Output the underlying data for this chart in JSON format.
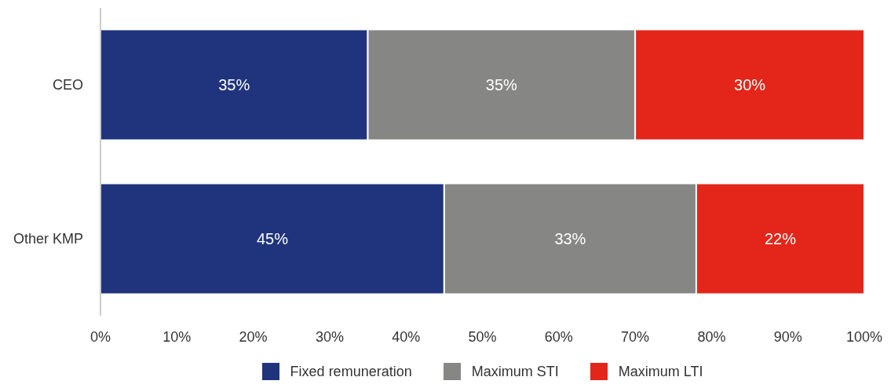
{
  "chart_data": {
    "type": "bar",
    "orientation": "horizontal",
    "stacked": true,
    "categories": [
      "CEO",
      "Other KMP"
    ],
    "series": [
      {
        "name": "Fixed remuneration",
        "color": "#1f347c",
        "values": [
          35,
          45
        ],
        "value_labels": [
          "35%",
          "45%"
        ]
      },
      {
        "name": "Maximum STI",
        "color": "#868685",
        "values": [
          35,
          33
        ],
        "value_labels": [
          "35%",
          "33%"
        ]
      },
      {
        "name": "Maximum LTI",
        "color": "#e32619",
        "values": [
          30,
          22
        ],
        "value_labels": [
          "30%",
          "22%"
        ]
      }
    ],
    "xlim": [
      0,
      100
    ],
    "xticks": [
      {
        "value": 0,
        "label": "0%"
      },
      {
        "value": 10,
        "label": "10%"
      },
      {
        "value": 20,
        "label": "20%"
      },
      {
        "value": 30,
        "label": "30%"
      },
      {
        "value": 40,
        "label": "40%"
      },
      {
        "value": 50,
        "label": "50%"
      },
      {
        "value": 60,
        "label": "60%"
      },
      {
        "value": 70,
        "label": "70%"
      },
      {
        "value": 80,
        "label": "80%"
      },
      {
        "value": 90,
        "label": "90%"
      },
      {
        "value": 100,
        "label": "100%"
      }
    ],
    "grid": false,
    "legend": "bottom"
  }
}
